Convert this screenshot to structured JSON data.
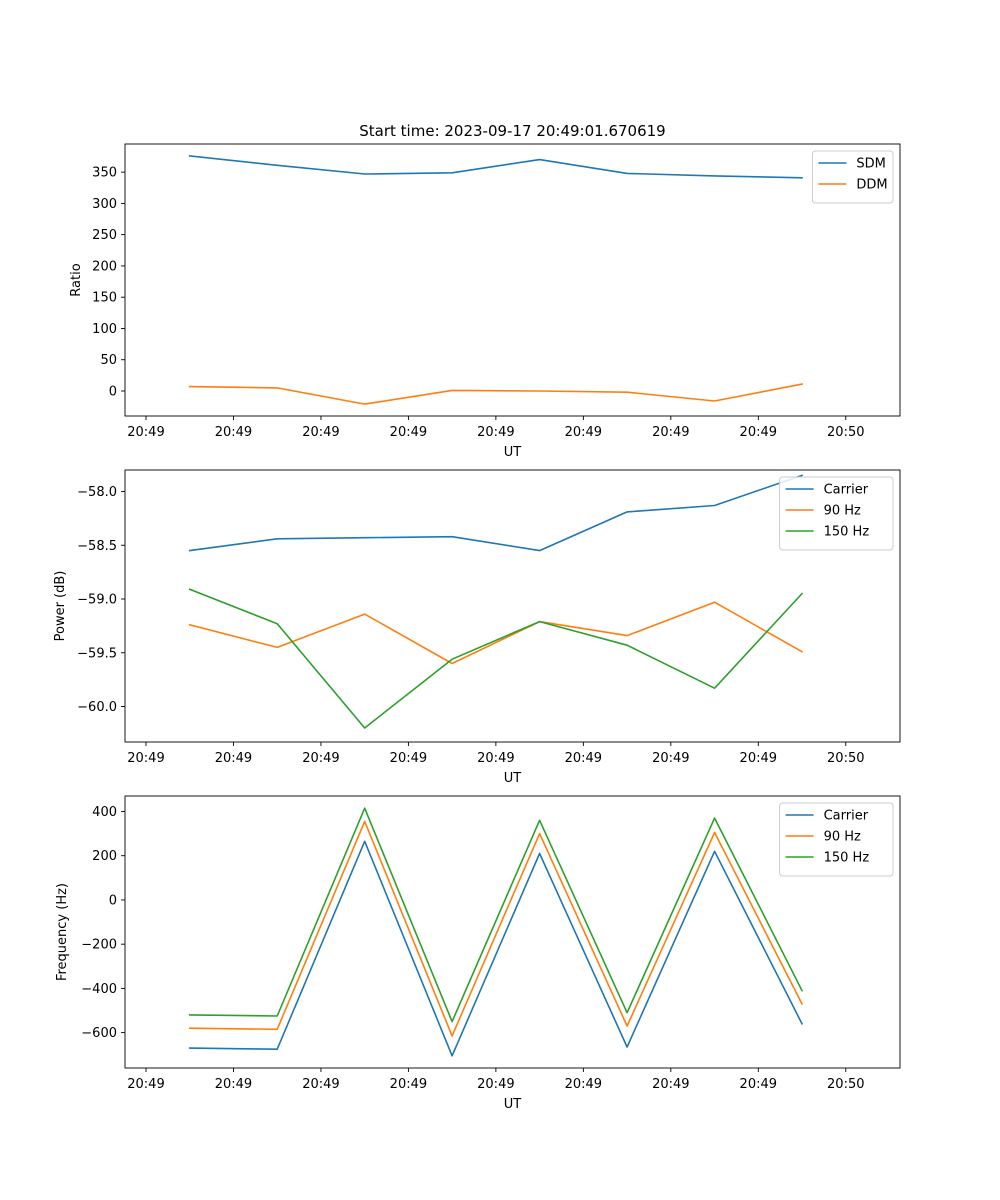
{
  "figure": {
    "title": "Start time: 2023-09-17 20:49:01.670619"
  },
  "colors": {
    "blue": "#1f77b4",
    "orange": "#ff7f0e",
    "green": "#2ca02c"
  },
  "chart_data": [
    {
      "type": "line",
      "title": "Start time: 2023-09-17 20:49:01.670619",
      "xlabel": "UT",
      "ylabel": "Ratio",
      "x": [
        1,
        2,
        3,
        4,
        5,
        6,
        7,
        8
      ],
      "xlim": [
        0.26,
        9.12
      ],
      "xticks": [
        0.5,
        1.5,
        2.5,
        3.5,
        4.5,
        5.5,
        6.5,
        7.5,
        8.5
      ],
      "xticklabels": [
        "20:49",
        "20:49",
        "20:49",
        "20:49",
        "20:49",
        "20:49",
        "20:49",
        "20:49",
        "20:50"
      ],
      "ylim": [
        -40,
        395
      ],
      "yticks": [
        0,
        50,
        100,
        150,
        200,
        250,
        300,
        350
      ],
      "yticklabels": [
        "0",
        "50",
        "100",
        "150",
        "200",
        "250",
        "300",
        "350"
      ],
      "legend_position": "top-right",
      "series": [
        {
          "name": "SDM",
          "color": "#1f77b4",
          "values": [
            376,
            361,
            347,
            349,
            370,
            348,
            344,
            341
          ]
        },
        {
          "name": "DDM",
          "color": "#ff7f0e",
          "values": [
            7,
            5,
            -21,
            1,
            0,
            -2,
            -16,
            11
          ]
        }
      ]
    },
    {
      "type": "line",
      "title": "",
      "xlabel": "UT",
      "ylabel": "Power (dB)",
      "x": [
        1,
        2,
        3,
        4,
        5,
        6,
        7,
        8
      ],
      "xlim": [
        0.26,
        9.12
      ],
      "xticks": [
        0.5,
        1.5,
        2.5,
        3.5,
        4.5,
        5.5,
        6.5,
        7.5,
        8.5
      ],
      "xticklabels": [
        "20:49",
        "20:49",
        "20:49",
        "20:49",
        "20:49",
        "20:49",
        "20:49",
        "20:49",
        "20:50"
      ],
      "ylim": [
        -60.33,
        -57.8
      ],
      "yticks": [
        -60.0,
        -59.5,
        -59.0,
        -58.5,
        -58.0
      ],
      "yticklabels": [
        "−60.0",
        "−59.5",
        "−59.0",
        "−58.5",
        "−58.0"
      ],
      "legend_position": "top-right",
      "series": [
        {
          "name": "Carrier",
          "color": "#1f77b4",
          "values": [
            -58.55,
            -58.44,
            -58.43,
            -58.42,
            -58.55,
            -58.19,
            -58.13,
            -57.85
          ]
        },
        {
          "name": "90 Hz",
          "color": "#ff7f0e",
          "values": [
            -59.24,
            -59.45,
            -59.14,
            -59.6,
            -59.21,
            -59.34,
            -59.03,
            -59.49
          ]
        },
        {
          "name": "150 Hz",
          "color": "#2ca02c",
          "values": [
            -58.91,
            -59.23,
            -60.2,
            -59.56,
            -59.21,
            -59.43,
            -59.83,
            -58.95
          ]
        }
      ]
    },
    {
      "type": "line",
      "title": "",
      "xlabel": "UT",
      "ylabel": "Frequency (Hz)",
      "x": [
        1,
        2,
        3,
        4,
        5,
        6,
        7,
        8
      ],
      "xlim": [
        0.26,
        9.12
      ],
      "xticks": [
        0.5,
        1.5,
        2.5,
        3.5,
        4.5,
        5.5,
        6.5,
        7.5,
        8.5
      ],
      "xticklabels": [
        "20:49",
        "20:49",
        "20:49",
        "20:49",
        "20:49",
        "20:49",
        "20:49",
        "20:49",
        "20:50"
      ],
      "ylim": [
        -760,
        470
      ],
      "yticks": [
        -600,
        -400,
        -200,
        0,
        200,
        400
      ],
      "yticklabels": [
        "−600",
        "−400",
        "−200",
        "0",
        "200",
        "400"
      ],
      "legend_position": "top-right",
      "series": [
        {
          "name": "Carrier",
          "color": "#1f77b4",
          "values": [
            -670,
            -675,
            265,
            -705,
            210,
            -665,
            220,
            -560
          ]
        },
        {
          "name": "90 Hz",
          "color": "#ff7f0e",
          "values": [
            -580,
            -585,
            355,
            -615,
            300,
            -570,
            305,
            -470
          ]
        },
        {
          "name": "150 Hz",
          "color": "#2ca02c",
          "values": [
            -520,
            -525,
            415,
            -550,
            360,
            -510,
            370,
            -410
          ]
        }
      ]
    }
  ]
}
